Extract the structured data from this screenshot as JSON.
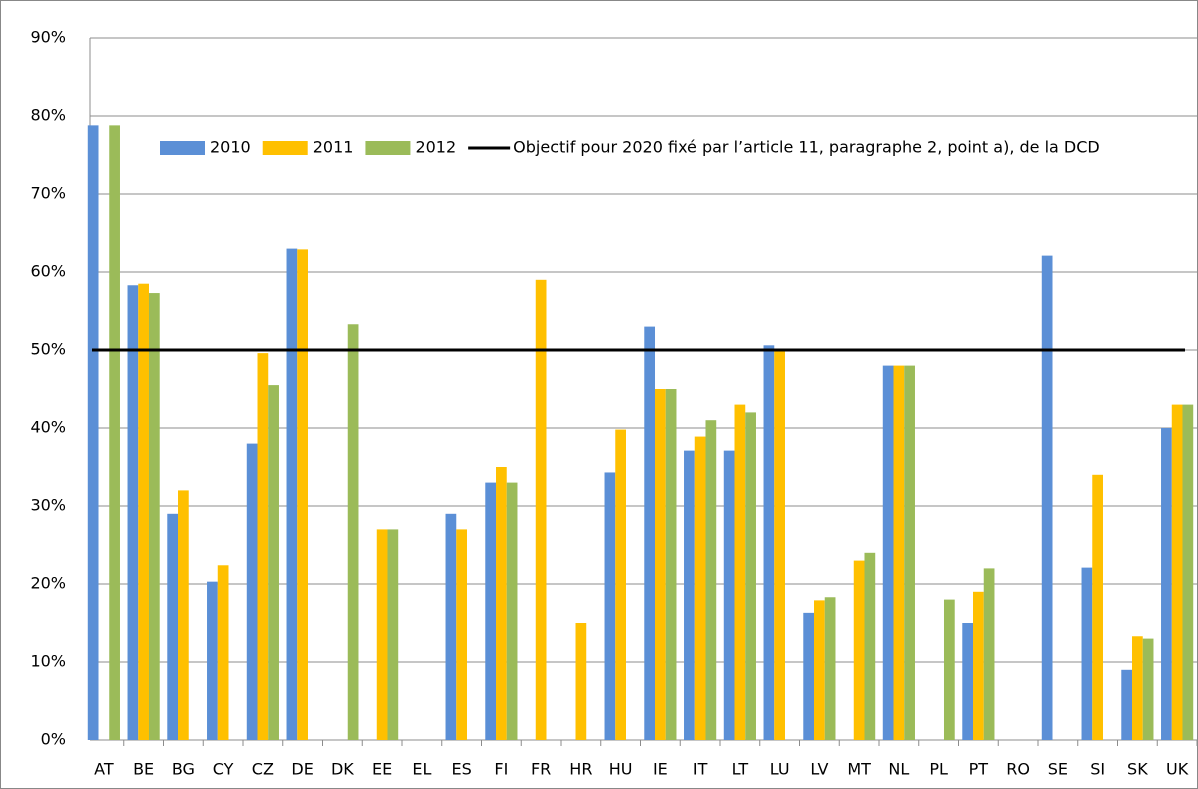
{
  "chart_data": {
    "type": "bar",
    "categories": [
      "AT",
      "BE",
      "BG",
      "CY",
      "CZ",
      "DE",
      "DK",
      "EE",
      "EL",
      "ES",
      "FI",
      "FR",
      "HR",
      "HU",
      "IE",
      "IT",
      "LT",
      "LU",
      "LV",
      "MT",
      "NL",
      "PL",
      "PT",
      "RO",
      "SE",
      "SI",
      "SK",
      "UK"
    ],
    "series": [
      {
        "name": "2010",
        "color": "#5b8fd6",
        "values": [
          78.8,
          58.3,
          29,
          20.3,
          38,
          63,
          null,
          null,
          null,
          29,
          33,
          null,
          null,
          34.3,
          53,
          37.1,
          37.1,
          50.6,
          16.3,
          null,
          48,
          null,
          15,
          null,
          62.1,
          22.1,
          9,
          40
        ]
      },
      {
        "name": "2011",
        "color": "#ffc000",
        "values": [
          null,
          58.5,
          32,
          22.4,
          49.6,
          62.9,
          null,
          27,
          null,
          27,
          35,
          59,
          15,
          39.8,
          45,
          38.9,
          43,
          50,
          17.9,
          23,
          48,
          null,
          19,
          null,
          null,
          34,
          13.3,
          43
        ]
      },
      {
        "name": "2012",
        "color": "#9bbb59",
        "values": [
          78.8,
          57.3,
          null,
          null,
          45.5,
          null,
          53.3,
          27,
          null,
          null,
          33,
          null,
          null,
          null,
          45,
          41,
          42,
          null,
          18.3,
          24,
          48,
          18,
          22,
          null,
          null,
          null,
          13,
          43
        ]
      }
    ],
    "reference_line": {
      "name": "Objectif pour 2020 fixé par l’article 11, paragraphe 2, point a), de la DCD",
      "value": 50,
      "color": "#000000"
    },
    "ylim": [
      0,
      90
    ],
    "yticks": [
      {
        "value": 0,
        "label": "0%"
      },
      {
        "value": 10,
        "label": "10%"
      },
      {
        "value": 20,
        "label": "20%"
      },
      {
        "value": 30,
        "label": "30%"
      },
      {
        "value": 40,
        "label": "40%"
      },
      {
        "value": 50,
        "label": "50%"
      },
      {
        "value": 60,
        "label": "60%"
      },
      {
        "value": 70,
        "label": "70%"
      },
      {
        "value": 80,
        "label": "80%"
      },
      {
        "value": 90,
        "label": "90%"
      }
    ],
    "grid": true
  }
}
